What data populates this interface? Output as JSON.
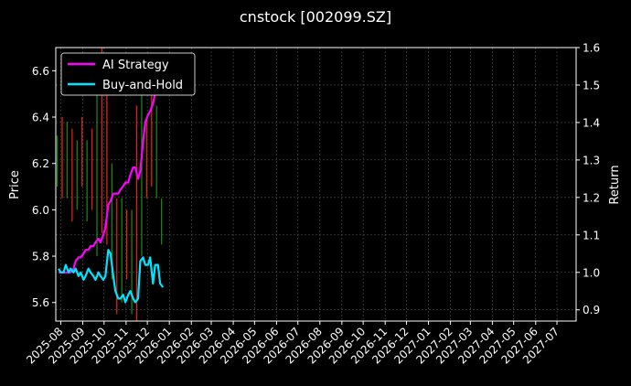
{
  "chart_data": {
    "type": "line",
    "title": "cnstock [002099.SZ]",
    "xlabel": "",
    "ylabel_left": "Price",
    "ylabel_right": "Return",
    "grid": true,
    "legend_position": "top-left",
    "colors": {
      "background": "#000000",
      "axis": "#ffffff",
      "grid": "#555555",
      "ai_strategy": "#ff00ff",
      "buy_and_hold": "#00e5ff",
      "candle_up": "#ff2a1a",
      "candle_down": "#1a9a1a"
    },
    "x_range": [
      "2025-07-25",
      "2027-07-28"
    ],
    "x_ticks": [
      "2025-08",
      "2025-09",
      "2025-10",
      "2025-11",
      "2025-12",
      "2026-01",
      "2026-02",
      "2026-03",
      "2026-04",
      "2026-05",
      "2026-06",
      "2026-07",
      "2026-08",
      "2026-09",
      "2026-10",
      "2026-11",
      "2026-12",
      "2027-01",
      "2027-02",
      "2027-03",
      "2027-04",
      "2027-05",
      "2027-06",
      "2027-07"
    ],
    "y_left_range": [
      5.52,
      6.7
    ],
    "y_left_ticks": [
      "5.6",
      "5.8",
      "6.0",
      "6.2",
      "6.4",
      "6.6"
    ],
    "y_right_range": [
      0.87,
      1.6
    ],
    "y_right_ticks": [
      "0.9",
      "1.0",
      "1.1",
      "1.2",
      "1.3",
      "1.4",
      "1.5",
      "1.6"
    ],
    "series": [
      {
        "name": "AI Strategy",
        "axis": "right",
        "x": [
          "2025-07-29",
          "2025-08-01",
          "2025-08-05",
          "2025-08-08",
          "2025-08-12",
          "2025-08-15",
          "2025-08-19",
          "2025-08-22",
          "2025-08-26",
          "2025-08-29",
          "2025-09-02",
          "2025-09-05",
          "2025-09-09",
          "2025-09-12",
          "2025-09-16",
          "2025-09-19",
          "2025-09-23",
          "2025-09-26",
          "2025-09-30",
          "2025-10-03",
          "2025-10-07",
          "2025-10-10",
          "2025-10-14",
          "2025-10-17",
          "2025-10-21",
          "2025-10-24",
          "2025-10-28",
          "2025-10-31",
          "2025-11-04",
          "2025-11-07",
          "2025-11-11",
          "2025-11-14",
          "2025-11-18",
          "2025-11-21",
          "2025-11-25",
          "2025-11-28",
          "2025-12-02",
          "2025-12-05",
          "2025-12-09",
          "2025-12-12",
          "2025-12-16",
          "2025-12-19",
          "2025-12-23"
        ],
        "values": [
          1.0,
          1.0,
          1.0,
          1.0,
          1.0,
          1.0,
          1.01,
          1.03,
          1.04,
          1.04,
          1.05,
          1.06,
          1.06,
          1.07,
          1.07,
          1.08,
          1.09,
          1.08,
          1.1,
          1.12,
          1.18,
          1.19,
          1.21,
          1.21,
          1.21,
          1.22,
          1.23,
          1.24,
          1.24,
          1.26,
          1.28,
          1.28,
          1.25,
          1.27,
          1.35,
          1.4,
          1.42,
          1.43,
          1.45,
          1.48,
          1.52,
          1.56,
          1.58
        ]
      },
      {
        "name": "Buy-and-Hold",
        "axis": "right",
        "x": [
          "2025-07-29",
          "2025-08-01",
          "2025-08-05",
          "2025-08-08",
          "2025-08-12",
          "2025-08-15",
          "2025-08-19",
          "2025-08-22",
          "2025-08-26",
          "2025-08-29",
          "2025-09-02",
          "2025-09-05",
          "2025-09-09",
          "2025-09-12",
          "2025-09-16",
          "2025-09-19",
          "2025-09-23",
          "2025-09-26",
          "2025-09-30",
          "2025-10-03",
          "2025-10-07",
          "2025-10-10",
          "2025-10-14",
          "2025-10-17",
          "2025-10-21",
          "2025-10-24",
          "2025-10-28",
          "2025-10-31",
          "2025-11-04",
          "2025-11-07",
          "2025-11-11",
          "2025-11-14",
          "2025-11-18",
          "2025-11-21",
          "2025-11-25",
          "2025-11-28",
          "2025-12-02",
          "2025-12-05",
          "2025-12-09",
          "2025-12-12",
          "2025-12-16",
          "2025-12-19",
          "2025-12-23"
        ],
        "values": [
          1.01,
          1.0,
          1.0,
          1.02,
          1.0,
          1.01,
          1.0,
          1.01,
          0.99,
          1.0,
          0.98,
          0.99,
          1.01,
          1.0,
          0.99,
          0.98,
          1.0,
          0.99,
          0.98,
          0.99,
          1.06,
          1.05,
          0.99,
          0.95,
          0.93,
          0.93,
          0.94,
          0.92,
          0.94,
          0.95,
          0.93,
          0.92,
          0.93,
          1.03,
          1.04,
          1.02,
          1.02,
          1.04,
          0.97,
          1.02,
          1.02,
          0.97,
          0.96
        ]
      }
    ],
    "price_bars": {
      "axis": "left",
      "x": [
        "2025-07-27",
        "2025-08-03",
        "2025-08-10",
        "2025-08-17",
        "2025-08-24",
        "2025-08-31",
        "2025-09-07",
        "2025-09-14",
        "2025-09-21",
        "2025-09-28",
        "2025-10-05",
        "2025-10-12",
        "2025-10-19",
        "2025-10-26",
        "2025-11-02",
        "2025-11-09",
        "2025-11-16",
        "2025-11-23",
        "2025-11-30",
        "2025-12-07",
        "2025-12-14",
        "2025-12-21"
      ],
      "low": [
        6.1,
        6.05,
        6.05,
        5.95,
        6.0,
        6.1,
        5.95,
        6.0,
        5.8,
        5.9,
        5.85,
        5.7,
        5.55,
        5.6,
        5.7,
        5.55,
        5.52,
        5.8,
        6.05,
        6.1,
        6.05,
        5.85
      ],
      "high": [
        6.32,
        6.4,
        6.38,
        6.35,
        6.3,
        6.4,
        6.3,
        6.35,
        6.65,
        6.7,
        6.55,
        6.2,
        6.05,
        6.05,
        6.0,
        6.0,
        6.45,
        6.55,
        6.4,
        6.65,
        6.45,
        6.05
      ],
      "direction": [
        "down",
        "up",
        "down",
        "up",
        "down",
        "up",
        "down",
        "up",
        "down",
        "up",
        "up",
        "down",
        "up",
        "down",
        "up",
        "down",
        "up",
        "down",
        "up",
        "up",
        "down",
        "down"
      ]
    }
  }
}
